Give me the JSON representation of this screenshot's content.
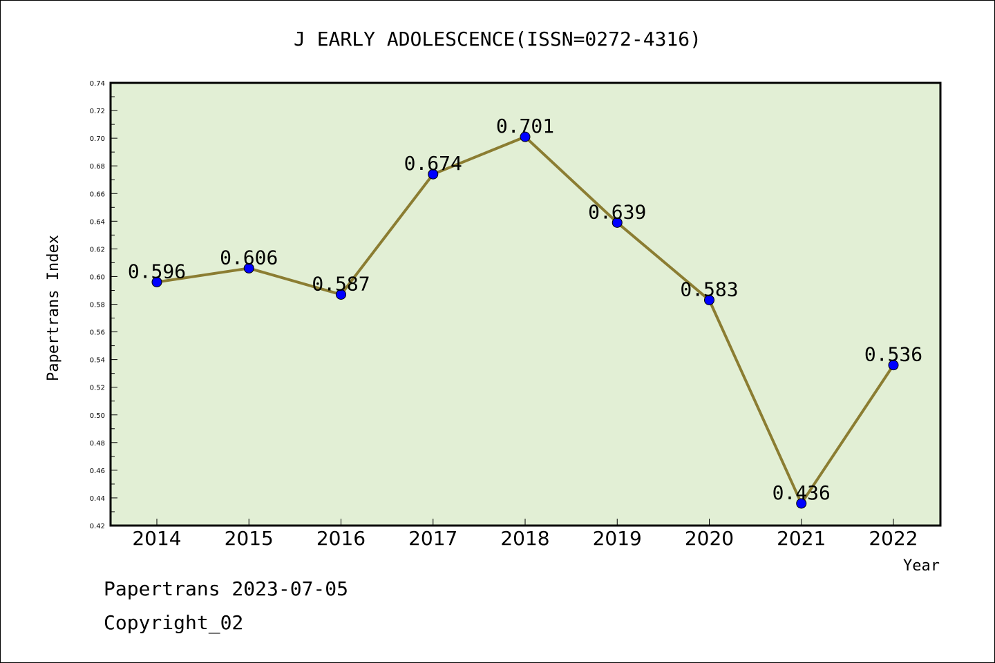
{
  "chart_data": {
    "type": "line",
    "title": "J EARLY ADOLESCENCE(ISSN=0272-4316)",
    "xlabel": "Year",
    "ylabel": "Papertrans Index",
    "categories": [
      "2014",
      "2015",
      "2016",
      "2017",
      "2018",
      "2019",
      "2020",
      "2021",
      "2022"
    ],
    "series": [
      {
        "values": [
          0.596,
          0.606,
          0.587,
          0.674,
          0.701,
          0.639,
          0.583,
          0.436,
          0.536
        ]
      }
    ],
    "data_labels": [
      "0.596",
      "0.606",
      "0.587",
      "0.674",
      "0.701",
      "0.639",
      "0.583",
      "0.436",
      "0.536"
    ],
    "ylim": [
      0.42,
      0.74
    ],
    "yticks": [
      "0.42",
      "0.44",
      "0.46",
      "0.48",
      "0.50",
      "0.52",
      "0.54",
      "0.56",
      "0.58",
      "0.60",
      "0.62",
      "0.64",
      "0.66",
      "0.68",
      "0.70",
      "0.72",
      "0.74"
    ],
    "grid": false,
    "legend": "none",
    "colors": {
      "plot_background": "#e2efd5",
      "line": "#8b7d32",
      "marker": "#0000ff"
    }
  },
  "footer": {
    "date_line": "Papertrans 2023-07-05",
    "copyright": "Copyright_02"
  }
}
